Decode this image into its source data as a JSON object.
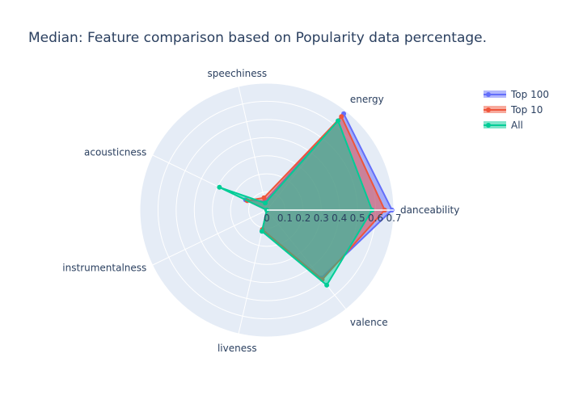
{
  "chart_data": {
    "type": "radar",
    "title": "Median: Feature comparison based on Popularity data percentage.",
    "axes": [
      "danceability",
      "energy",
      "speechiness",
      "acousticness",
      "instrumentalness",
      "liveness",
      "valence"
    ],
    "radial_range": [
      0,
      0.7
    ],
    "radial_ticks": [
      "0",
      "0.1",
      "0.2",
      "0.3",
      "0.4",
      "0.5",
      "0.6",
      "0.7"
    ],
    "grid": true,
    "legend_position": "top-right",
    "series": [
      {
        "name": "Top 100",
        "color": "#636efa",
        "values": [
          0.69,
          0.68,
          0.05,
          0.13,
          0.0,
          0.12,
          0.48
        ]
      },
      {
        "name": "Top 10",
        "color": "#ef553b",
        "values": [
          0.65,
          0.66,
          0.07,
          0.12,
          0.0,
          0.11,
          0.49
        ]
      },
      {
        "name": "All",
        "color": "#00cc96",
        "values": [
          0.58,
          0.63,
          0.04,
          0.29,
          0.0,
          0.12,
          0.53
        ]
      }
    ]
  }
}
